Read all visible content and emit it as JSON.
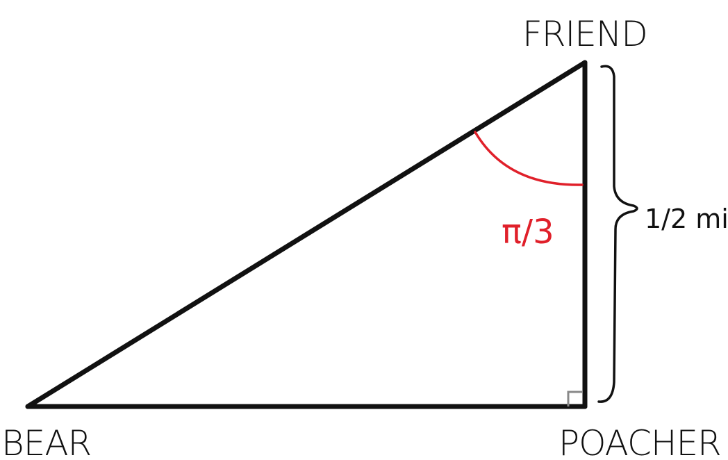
{
  "diagram": {
    "vertices": {
      "friend": "FRIEND",
      "bear": "BEAR",
      "poacher": "POACHER"
    },
    "side_label": "1/2 mile",
    "angle_label": "π/3",
    "colors": {
      "ink": "#111111",
      "angle": "#e0202a",
      "right_angle_marker": "#888888"
    }
  }
}
